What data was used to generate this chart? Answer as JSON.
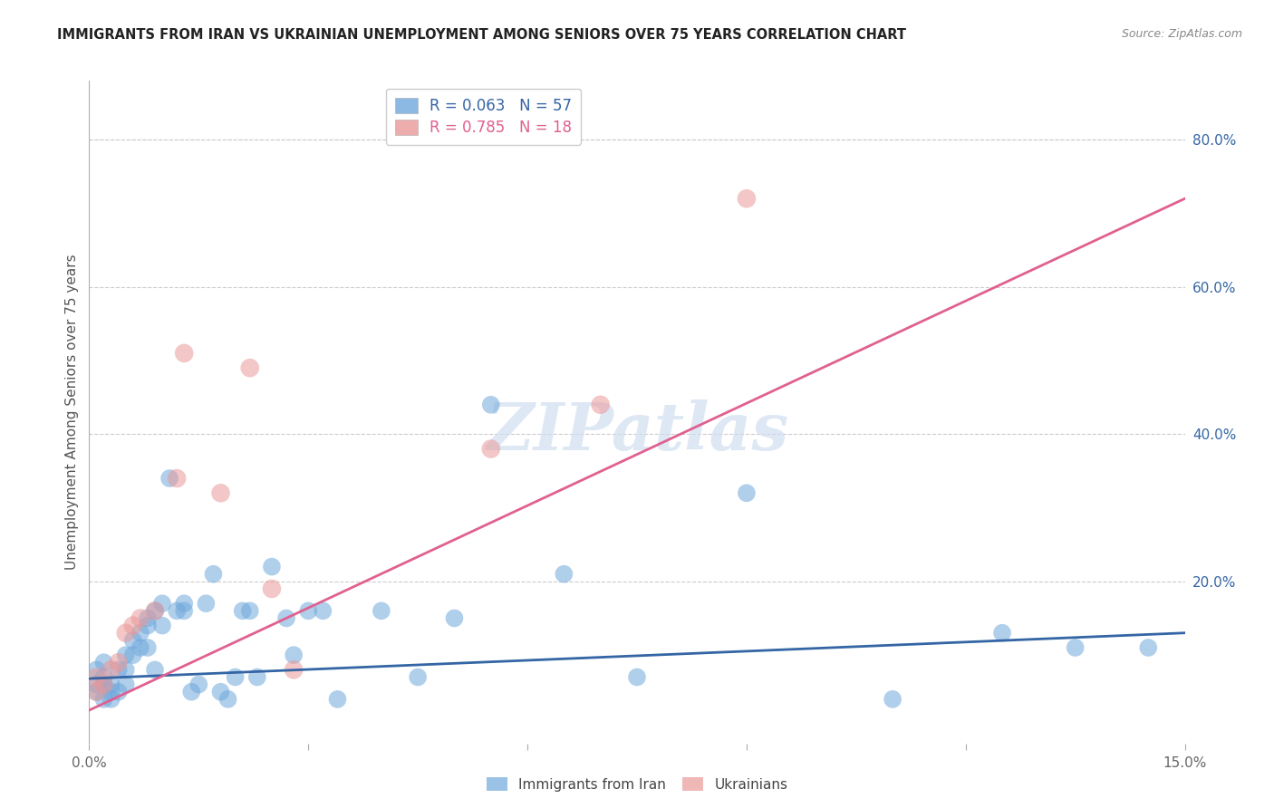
{
  "title": "IMMIGRANTS FROM IRAN VS UKRAINIAN UNEMPLOYMENT AMONG SENIORS OVER 75 YEARS CORRELATION CHART",
  "source": "Source: ZipAtlas.com",
  "ylabel": "Unemployment Among Seniors over 75 years",
  "xlim": [
    0.0,
    0.15
  ],
  "ylim": [
    -0.02,
    0.88
  ],
  "xticks": [
    0.0,
    0.03,
    0.06,
    0.09,
    0.12,
    0.15
  ],
  "xtick_labels": [
    "0.0%",
    "",
    "",
    "",
    "",
    "15.0%"
  ],
  "yticks_right": [
    0.0,
    0.2,
    0.4,
    0.6,
    0.8
  ],
  "ytick_labels_right": [
    "",
    "20.0%",
    "40.0%",
    "60.0%",
    "80.0%"
  ],
  "legend_entries": [
    {
      "label": "R = 0.063   N = 57",
      "color": "#6fa8dc"
    },
    {
      "label": "R = 0.785   N = 18",
      "color": "#ea9999"
    }
  ],
  "legend_labels_bottom": [
    "Immigrants from Iran",
    "Ukrainians"
  ],
  "iran_color": "#6fa8dc",
  "ukraine_color": "#ea9999",
  "iran_line_color": "#3465a4",
  "ukraine_line_color": "#e06090",
  "watermark": "ZIPatlas",
  "iran_x": [
    0.001,
    0.001,
    0.001,
    0.002,
    0.002,
    0.002,
    0.002,
    0.003,
    0.003,
    0.003,
    0.004,
    0.004,
    0.005,
    0.005,
    0.005,
    0.006,
    0.006,
    0.007,
    0.007,
    0.008,
    0.008,
    0.008,
    0.009,
    0.009,
    0.01,
    0.01,
    0.011,
    0.012,
    0.013,
    0.013,
    0.014,
    0.015,
    0.016,
    0.017,
    0.018,
    0.019,
    0.02,
    0.021,
    0.022,
    0.023,
    0.025,
    0.027,
    0.028,
    0.03,
    0.032,
    0.034,
    0.04,
    0.045,
    0.05,
    0.055,
    0.065,
    0.075,
    0.09,
    0.11,
    0.125,
    0.135,
    0.145
  ],
  "iran_y": [
    0.08,
    0.06,
    0.05,
    0.09,
    0.07,
    0.06,
    0.04,
    0.06,
    0.05,
    0.04,
    0.08,
    0.05,
    0.1,
    0.08,
    0.06,
    0.12,
    0.1,
    0.13,
    0.11,
    0.15,
    0.14,
    0.11,
    0.16,
    0.08,
    0.17,
    0.14,
    0.34,
    0.16,
    0.17,
    0.16,
    0.05,
    0.06,
    0.17,
    0.21,
    0.05,
    0.04,
    0.07,
    0.16,
    0.16,
    0.07,
    0.22,
    0.15,
    0.1,
    0.16,
    0.16,
    0.04,
    0.16,
    0.07,
    0.15,
    0.44,
    0.21,
    0.07,
    0.32,
    0.04,
    0.13,
    0.11,
    0.11
  ],
  "ukraine_x": [
    0.001,
    0.001,
    0.002,
    0.003,
    0.004,
    0.005,
    0.006,
    0.007,
    0.009,
    0.012,
    0.013,
    0.018,
    0.022,
    0.025,
    0.028,
    0.055,
    0.07,
    0.09
  ],
  "ukraine_y": [
    0.07,
    0.05,
    0.06,
    0.08,
    0.09,
    0.13,
    0.14,
    0.15,
    0.16,
    0.34,
    0.51,
    0.32,
    0.49,
    0.19,
    0.08,
    0.38,
    0.44,
    0.72
  ],
  "iran_reg": [
    0.068,
    0.13
  ],
  "ukraine_reg": [
    0.025,
    0.72
  ]
}
